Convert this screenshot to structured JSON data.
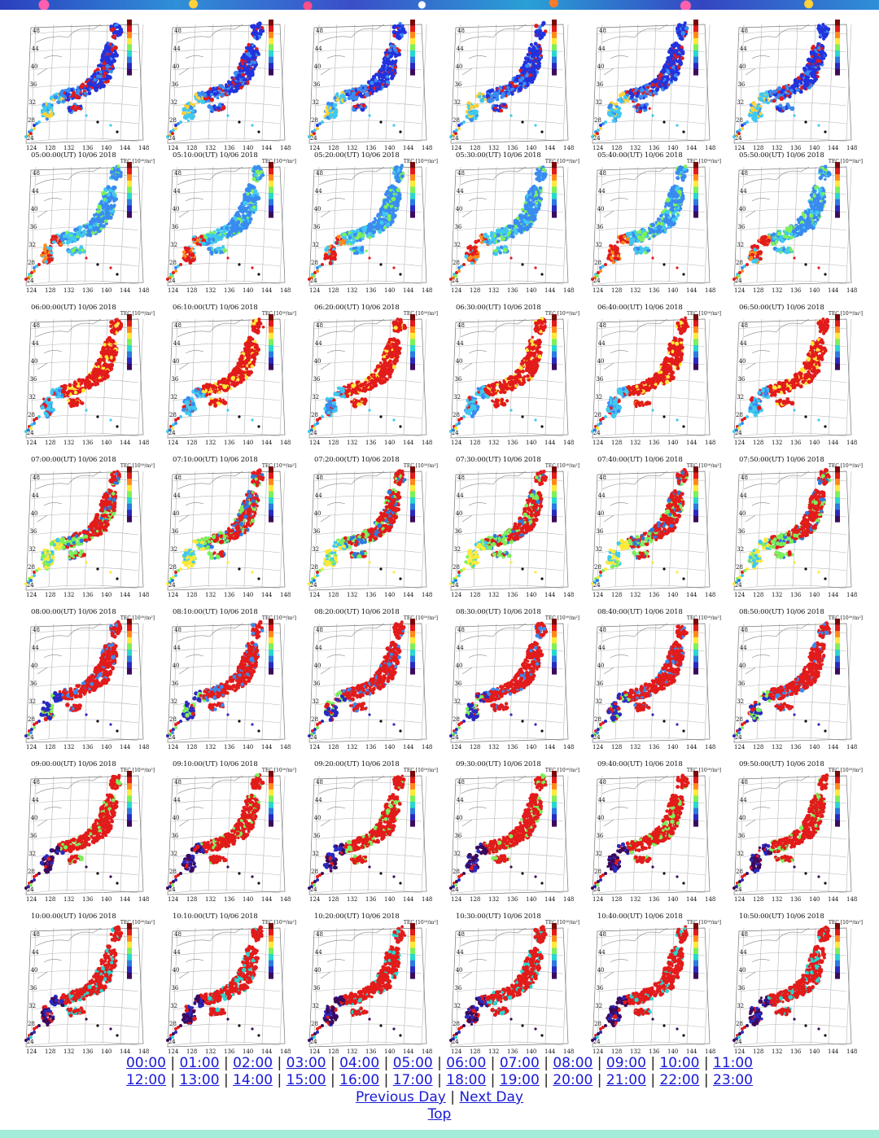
{
  "frames": [
    {
      "title": "",
      "phase": 0
    },
    {
      "title": "",
      "phase": 0
    },
    {
      "title": "",
      "phase": 0
    },
    {
      "title": "",
      "phase": 0
    },
    {
      "title": "",
      "phase": 0
    },
    {
      "title": "",
      "phase": 0
    },
    {
      "title": "05:00:00(UT)  10/06 2018",
      "phase": 1
    },
    {
      "title": "05:10:00(UT)  10/06 2018",
      "phase": 1
    },
    {
      "title": "05:20:00(UT)  10/06 2018",
      "phase": 1
    },
    {
      "title": "05:30:00(UT)  10/06 2018",
      "phase": 1
    },
    {
      "title": "05:40:00(UT)  10/06 2018",
      "phase": 1
    },
    {
      "title": "05:50:00(UT)  10/06 2018",
      "phase": 1
    },
    {
      "title": "06:00:00(UT)  10/06 2018",
      "phase": 2
    },
    {
      "title": "06:10:00(UT)  10/06 2018",
      "phase": 2
    },
    {
      "title": "06:20:00(UT)  10/06 2018",
      "phase": 2
    },
    {
      "title": "06:30:00(UT)  10/06 2018",
      "phase": 2
    },
    {
      "title": "06:40:00(UT)  10/06 2018",
      "phase": 2
    },
    {
      "title": "06:50:00(UT)  10/06 2018",
      "phase": 2
    },
    {
      "title": "07:00:00(UT)  10/06 2018",
      "phase": 3
    },
    {
      "title": "07:10:00(UT)  10/06 2018",
      "phase": 3
    },
    {
      "title": "07:20:00(UT)  10/06 2018",
      "phase": 3
    },
    {
      "title": "07:30:00(UT)  10/06 2018",
      "phase": 3
    },
    {
      "title": "07:40:00(UT)  10/06 2018",
      "phase": 3
    },
    {
      "title": "07:50:00(UT)  10/06 2018",
      "phase": 3
    },
    {
      "title": "08:00:00(UT)  10/06 2018",
      "phase": 4
    },
    {
      "title": "08:10:00(UT)  10/06 2018",
      "phase": 4
    },
    {
      "title": "08:20:00(UT)  10/06 2018",
      "phase": 4
    },
    {
      "title": "08:30:00(UT)  10/06 2018",
      "phase": 4
    },
    {
      "title": "08:40:00(UT)  10/06 2018",
      "phase": 4
    },
    {
      "title": "08:50:00(UT)  10/06 2018",
      "phase": 4
    },
    {
      "title": "09:00:00(UT)  10/06 2018",
      "phase": 5
    },
    {
      "title": "09:10:00(UT)  10/06 2018",
      "phase": 5
    },
    {
      "title": "09:20:00(UT)  10/06 2018",
      "phase": 5
    },
    {
      "title": "09:30:00(UT)  10/06 2018",
      "phase": 5
    },
    {
      "title": "09:40:00(UT)  10/06 2018",
      "phase": 5
    },
    {
      "title": "09:50:00(UT)  10/06 2018",
      "phase": 5
    },
    {
      "title": "10:00:00(UT)  10/06 2018",
      "phase": 6
    },
    {
      "title": "10:10:00(UT)  10/06 2018",
      "phase": 6
    },
    {
      "title": "10:20:00(UT)  10/06 2018",
      "phase": 6
    },
    {
      "title": "10:30:00(UT)  10/06 2018",
      "phase": 6
    },
    {
      "title": "10:40:00(UT)  10/06 2018",
      "phase": 6
    },
    {
      "title": "10:50:00(UT)  10/06 2018",
      "phase": 6
    }
  ],
  "map": {
    "tec_label": "TEC [10¹⁶/m²]",
    "lat_ticks": [
      "48",
      "44",
      "40",
      "36",
      "32",
      "28",
      "24"
    ],
    "lon_ticks": [
      "124",
      "128",
      "132",
      "136",
      "140",
      "144",
      "148"
    ],
    "colorbar": [
      "#7a0a0a",
      "#e21b1b",
      "#ff8a1a",
      "#ffe93a",
      "#7df05a",
      "#29d7d0",
      "#2b7be0",
      "#2a2ac0",
      "#3b0a5c"
    ]
  },
  "nav": {
    "hours_row1": [
      "00:00",
      "01:00",
      "02:00",
      "03:00",
      "04:00",
      "05:00",
      "06:00",
      "07:00",
      "08:00",
      "09:00",
      "10:00",
      "11:00"
    ],
    "hours_row2": [
      "12:00",
      "13:00",
      "14:00",
      "15:00",
      "16:00",
      "17:00",
      "18:00",
      "19:00",
      "20:00",
      "21:00",
      "22:00",
      "23:00"
    ],
    "separator": "|",
    "previous_day": "Previous Day",
    "next_day": "Next Day",
    "top": "Top"
  },
  "colors": {
    "link": "#1a1ad6",
    "bottom_bar": "#a3ecd9",
    "banner": "#2f8fd8"
  }
}
